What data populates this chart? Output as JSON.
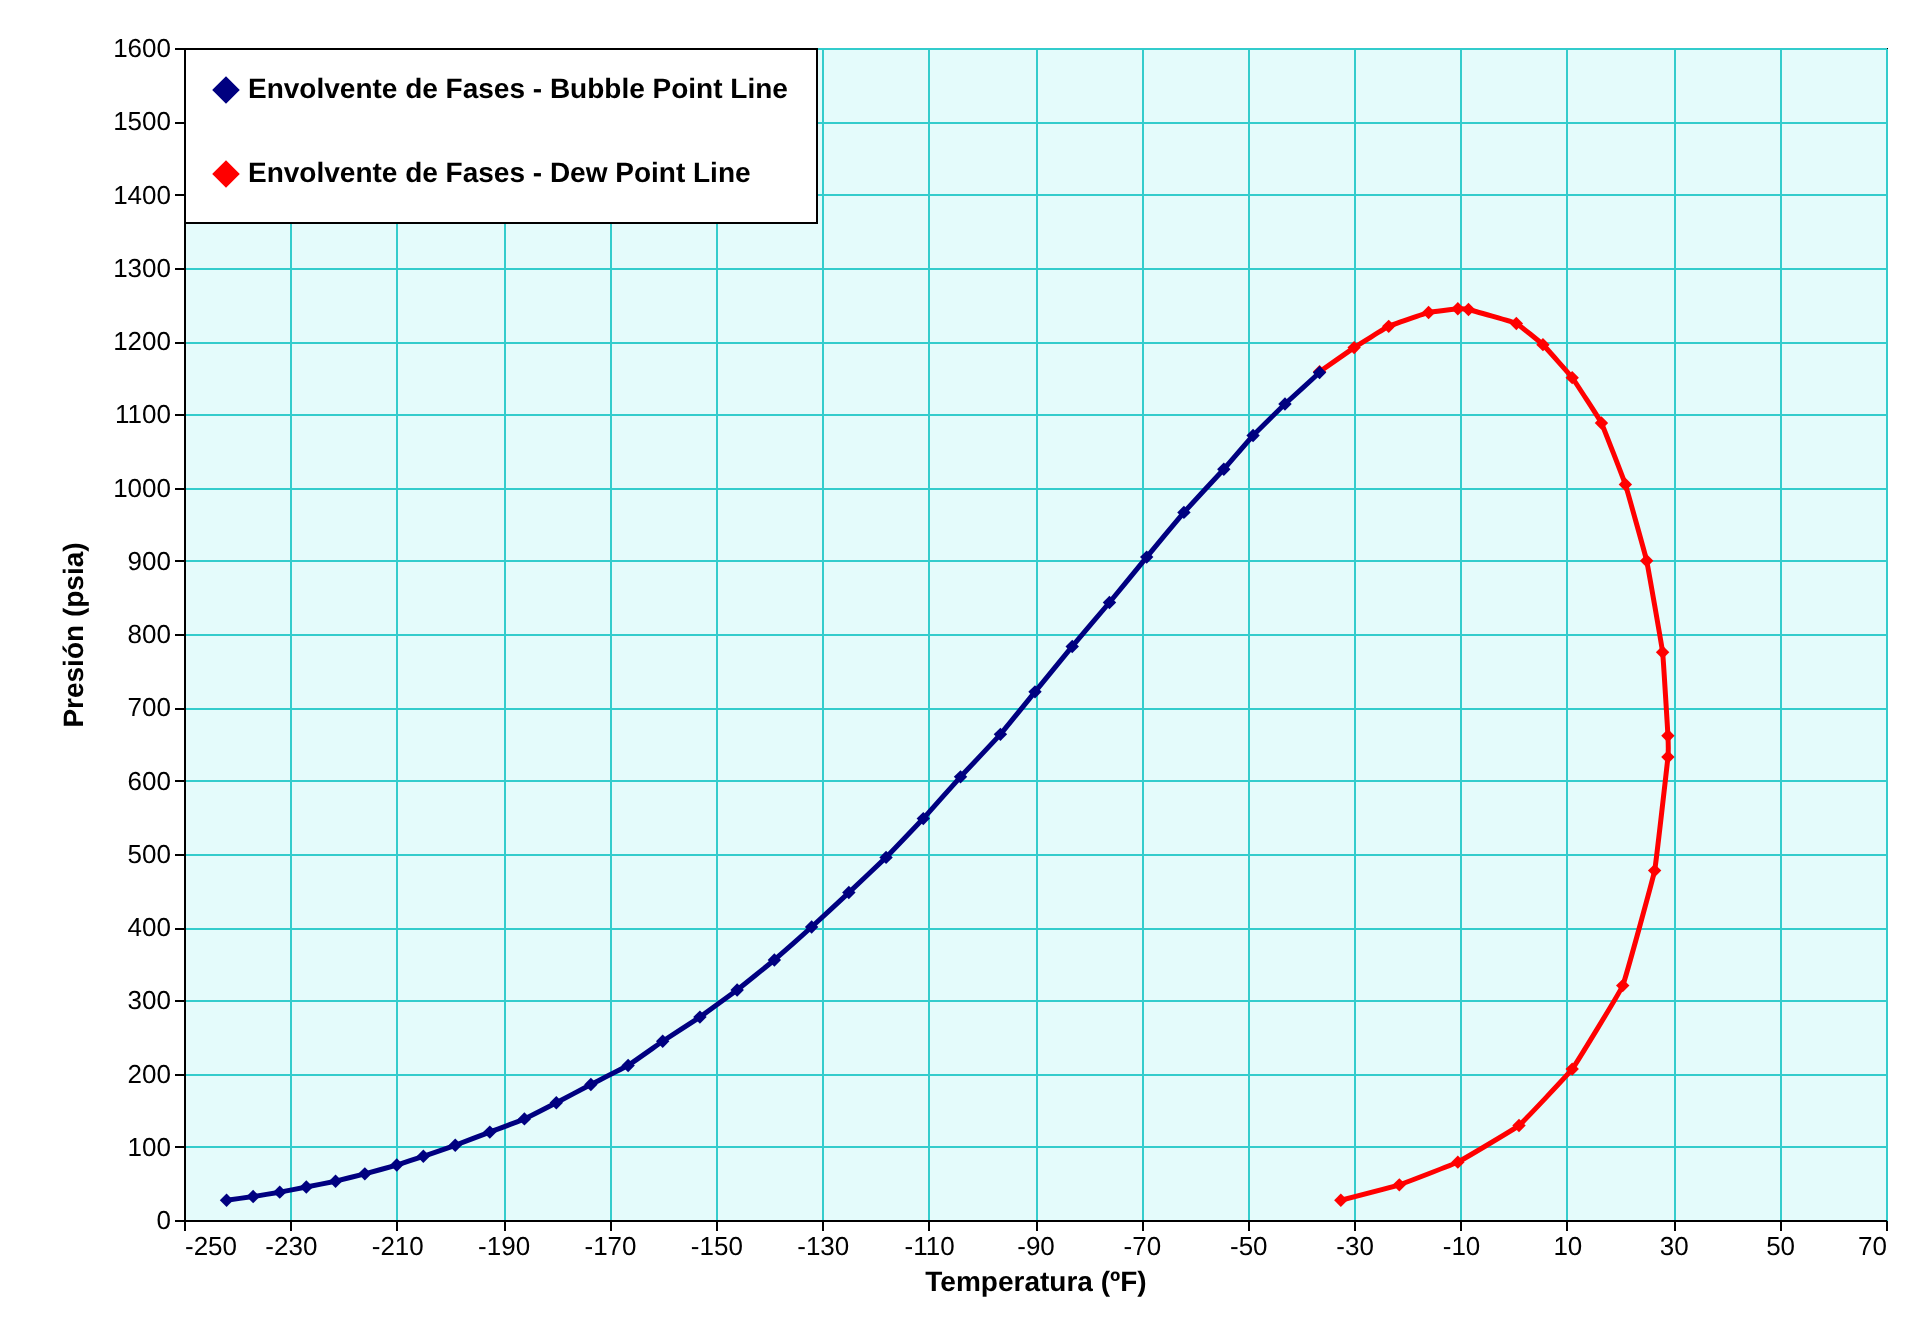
{
  "chart_data": {
    "type": "line",
    "xlabel": "Temperatura (ºF)",
    "ylabel": "Presión (psia)",
    "xlim": [
      -250,
      70
    ],
    "xticks": [
      -250,
      -230,
      -210,
      -190,
      -170,
      -150,
      -130,
      -110,
      -90,
      -70,
      -50,
      -30,
      -10,
      10,
      30,
      50,
      70
    ],
    "ylim": [
      0,
      1600
    ],
    "yticks": [
      0,
      100,
      200,
      300,
      400,
      500,
      600,
      700,
      800,
      900,
      1000,
      1100,
      1200,
      1300,
      1400,
      1500,
      1600
    ],
    "grid": true,
    "legend": "top left",
    "marker": "diamond",
    "line_style": "solid",
    "series": [
      {
        "name": "Envolvente de Fases - Bubble Point Line",
        "color": "#000080",
        "x": [
          -242,
          -237,
          -232,
          -227,
          -221.5,
          -216,
          -210,
          -205,
          -199,
          -192.5,
          -186,
          -180,
          -173.5,
          -166.5,
          -160,
          -153,
          -146,
          -139,
          -132,
          -125,
          -118,
          -111,
          -104,
          -96.5,
          -90,
          -83,
          -76,
          -69,
          -62,
          -54.5,
          -49,
          -43,
          -36.5
        ],
        "values": [
          27,
          32,
          38,
          45,
          53,
          63,
          75,
          87,
          102,
          120,
          138,
          160,
          185,
          211,
          244,
          277,
          314,
          355,
          400,
          447,
          495,
          548,
          605,
          663,
          721,
          783,
          843,
          905,
          966,
          1025,
          1071,
          1114,
          1157
        ]
      },
      {
        "name": "Envolvente de Fases - Dew Point Line",
        "color": "#ff0000",
        "x": [
          -36.5,
          -30,
          -23.5,
          -16,
          -10.5,
          -8.5,
          0.5,
          5.5,
          11,
          16.5,
          21,
          25,
          28,
          29,
          29,
          26.5,
          20.5,
          11,
          1,
          -10.5,
          -21.5,
          -32.5
        ],
        "values": [
          1158,
          1191,
          1220,
          1239,
          1244,
          1243,
          1224,
          1195,
          1150,
          1088,
          1004,
          900,
          775,
          661,
          632,
          477,
          320,
          206,
          129,
          79,
          48,
          27
        ]
      }
    ]
  }
}
